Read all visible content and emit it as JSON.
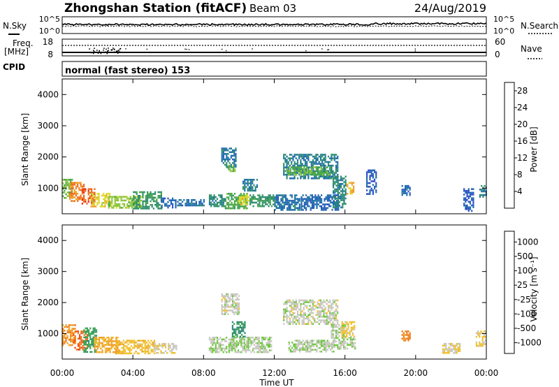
{
  "header": {
    "title": "Zhongshan Station (fitACF)",
    "beam": "Beam 03",
    "date": "24/Aug/2019"
  },
  "noise_panel": {
    "left_label": "N.Sky",
    "right_label": "N.Search",
    "left_ticks": [
      "10^5",
      "10^0"
    ],
    "right_ticks": [
      "10^5",
      "10^0"
    ]
  },
  "freq_panel": {
    "left_label_1": "Freq.",
    "left_label_2": "[MHz]",
    "left_ticks": [
      "18",
      "8"
    ],
    "right_label": "Nave",
    "right_ticks": [
      "60",
      "0"
    ]
  },
  "cpid_panel": {
    "label": "CPID",
    "text": "normal (fast stereo) 153"
  },
  "axes": {
    "ylabel": "Slant Range [km]",
    "xlabel": "Time UT",
    "y_ticks": [
      "1000",
      "2000",
      "3000",
      "4000"
    ],
    "x_ticks": [
      "00:00",
      "04:00",
      "08:00",
      "12:00",
      "16:00",
      "20:00",
      "00:00"
    ]
  },
  "power_colorbar": {
    "label": "Power [dB]",
    "ticks": [
      "4",
      "8",
      "12",
      "16",
      "20",
      "24",
      "28"
    ],
    "colors": [
      "#1a1aff",
      "#2a50c8",
      "#1e6fa8",
      "#2f8f6a",
      "#49a844",
      "#8ec63c",
      "#dcd82c",
      "#f0a028",
      "#f06a1c",
      "#e82a18",
      "#d40000"
    ]
  },
  "velocity_colorbar": {
    "label": "Velocity [m s⁻¹]",
    "ticks": [
      "1000",
      "500",
      "100",
      "25",
      "-25",
      "-100",
      "-500",
      "-1000"
    ],
    "colors": [
      "#1a3fe0",
      "#2a64b4",
      "#2f8a74",
      "#3aa456",
      "#6ec83c",
      "#c8c8c0",
      "#f0c030",
      "#f0a028",
      "#f07a1c",
      "#ee4a14",
      "#e00000"
    ]
  },
  "chart_data": [
    {
      "type": "heatmap",
      "name_hint": "power",
      "xlim": [
        0,
        24
      ],
      "ylim": [
        180,
        4500
      ],
      "clim": [
        0,
        30
      ],
      "patches": [
        {
          "t0": 0.0,
          "t1": 0.6,
          "r0": 700,
          "r1": 1300,
          "v": 14
        },
        {
          "t0": 0.4,
          "t1": 1.2,
          "r0": 600,
          "r1": 1200,
          "v": 22
        },
        {
          "t0": 1.1,
          "t1": 1.8,
          "r0": 500,
          "r1": 1000,
          "v": 24
        },
        {
          "t0": 1.6,
          "t1": 2.8,
          "r0": 400,
          "r1": 850,
          "v": 18
        },
        {
          "t0": 2.6,
          "t1": 4.5,
          "r0": 350,
          "r1": 750,
          "v": 15
        },
        {
          "t0": 4.0,
          "t1": 5.6,
          "r0": 350,
          "r1": 900,
          "v": 10
        },
        {
          "t0": 5.6,
          "t1": 6.4,
          "r0": 400,
          "r1": 700,
          "v": 6
        },
        {
          "t0": 6.5,
          "t1": 8.0,
          "r0": 450,
          "r1": 650,
          "v": 7
        },
        {
          "t0": 8.3,
          "t1": 9.2,
          "r0": 400,
          "r1": 800,
          "v": 9
        },
        {
          "t0": 9.0,
          "t1": 9.8,
          "r0": 1700,
          "r1": 2300,
          "v": 7
        },
        {
          "t0": 9.3,
          "t1": 9.8,
          "r0": 1550,
          "r1": 1750,
          "v": 14
        },
        {
          "t0": 9.2,
          "t1": 10.5,
          "r0": 350,
          "r1": 850,
          "v": 12
        },
        {
          "t0": 10.0,
          "t1": 10.6,
          "r0": 500,
          "r1": 800,
          "v": 18
        },
        {
          "t0": 10.2,
          "t1": 11.0,
          "r0": 900,
          "r1": 1300,
          "v": 8
        },
        {
          "t0": 10.6,
          "t1": 12.0,
          "r0": 400,
          "r1": 800,
          "v": 10
        },
        {
          "t0": 12.0,
          "t1": 13.4,
          "r0": 300,
          "r1": 800,
          "v": 7
        },
        {
          "t0": 12.5,
          "t1": 15.6,
          "r0": 1300,
          "r1": 2100,
          "v": 8
        },
        {
          "t0": 12.7,
          "t1": 15.2,
          "r0": 1450,
          "r1": 1700,
          "v": 13
        },
        {
          "t0": 13.5,
          "t1": 15.6,
          "r0": 300,
          "r1": 800,
          "v": 6
        },
        {
          "t0": 15.3,
          "t1": 16.0,
          "r0": 400,
          "r1": 1400,
          "v": 9
        },
        {
          "t0": 16.1,
          "t1": 16.5,
          "r0": 800,
          "r1": 1200,
          "v": 20
        },
        {
          "t0": 17.2,
          "t1": 17.8,
          "r0": 800,
          "r1": 1600,
          "v": 5
        },
        {
          "t0": 19.2,
          "t1": 19.7,
          "r0": 800,
          "r1": 1100,
          "v": 6
        },
        {
          "t0": 22.7,
          "t1": 23.3,
          "r0": 300,
          "r1": 1000,
          "v": 5
        },
        {
          "t0": 23.6,
          "t1": 24.0,
          "r0": 700,
          "r1": 1100,
          "v": 8
        }
      ]
    },
    {
      "type": "heatmap",
      "name_hint": "velocity",
      "xlim": [
        0,
        24
      ],
      "ylim": [
        180,
        4500
      ],
      "clim": [
        -1000,
        1000
      ],
      "patches": [
        {
          "t0": 0.0,
          "t1": 0.7,
          "r0": 600,
          "r1": 1300,
          "v": -400
        },
        {
          "t0": 0.6,
          "t1": 1.4,
          "r0": 500,
          "r1": 1100,
          "v": -600
        },
        {
          "t0": 1.2,
          "t1": 1.9,
          "r0": 400,
          "r1": 1200,
          "v": 400
        },
        {
          "t0": 1.8,
          "t1": 3.2,
          "r0": 400,
          "r1": 900,
          "v": -300
        },
        {
          "t0": 3.0,
          "t1": 5.2,
          "r0": 350,
          "r1": 800,
          "v": -200
        },
        {
          "t0": 5.2,
          "t1": 6.5,
          "r0": 400,
          "r1": 700,
          "v": -80
        },
        {
          "t0": 8.3,
          "t1": 9.3,
          "r0": 400,
          "r1": 900,
          "v": 60
        },
        {
          "t0": 9.0,
          "t1": 10.0,
          "r0": 1600,
          "r1": 2300,
          "v": 0
        },
        {
          "t0": 9.4,
          "t1": 10.4,
          "r0": 400,
          "r1": 900,
          "v": 80
        },
        {
          "t0": 9.6,
          "t1": 10.3,
          "r0": 900,
          "r1": 1400,
          "v": 500
        },
        {
          "t0": 10.4,
          "t1": 11.8,
          "r0": 400,
          "r1": 900,
          "v": 70
        },
        {
          "t0": 12.5,
          "t1": 15.6,
          "r0": 1300,
          "r1": 2100,
          "v": 5
        },
        {
          "t0": 12.8,
          "t1": 15.4,
          "r0": 400,
          "r1": 800,
          "v": 70
        },
        {
          "t0": 15.2,
          "t1": 16.0,
          "r0": 500,
          "r1": 1300,
          "v": 60
        },
        {
          "t0": 15.8,
          "t1": 16.5,
          "r0": 900,
          "r1": 1400,
          "v": -150
        },
        {
          "t0": 16.1,
          "t1": 16.6,
          "r0": 500,
          "r1": 900,
          "v": 90
        },
        {
          "t0": 19.2,
          "t1": 19.7,
          "r0": 800,
          "r1": 1100,
          "v": -500
        },
        {
          "t0": 21.5,
          "t1": 22.5,
          "r0": 400,
          "r1": 700,
          "v": -100
        },
        {
          "t0": 23.4,
          "t1": 24.0,
          "r0": 600,
          "r1": 1100,
          "v": -90
        }
      ]
    }
  ]
}
